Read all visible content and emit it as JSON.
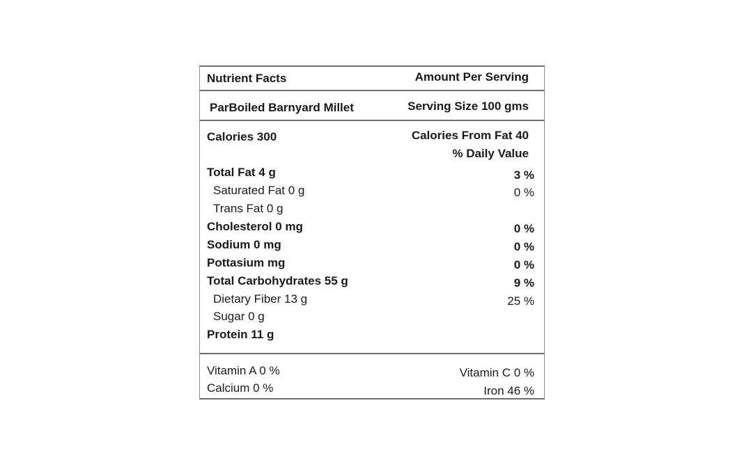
{
  "header": {
    "title": "Nutrient Facts",
    "amount_label": "Amount Per Serving"
  },
  "product": {
    "name": "ParBoiled Barnyard Millet",
    "serving_size": "Serving Size 100 gms"
  },
  "calories": {
    "label": "Calories 300",
    "from_fat": "Calories From Fat 40",
    "daily_value_header": "% Daily Value"
  },
  "nutrients": [
    {
      "label": "Total Fat 4 g",
      "percent": "3 %"
    },
    {
      "label": "Saturated Fat 0 g",
      "percent": "0 %"
    },
    {
      "label": "Trans Fat 0 g",
      "percent": ""
    },
    {
      "label": "Cholesterol 0 mg",
      "percent": "0 %"
    },
    {
      "label": "Sodium 0 mg",
      "percent": "0 %"
    },
    {
      "label": "Pottasium mg",
      "percent": "0 %"
    },
    {
      "label": "Total Carbohydrates 55 g",
      "percent": "9 %"
    },
    {
      "label": "Dietary Fiber 13 g",
      "percent": "25 %"
    },
    {
      "label": "Sugar 0 g",
      "percent": ""
    },
    {
      "label": "Protein 11 g",
      "percent": ""
    }
  ],
  "vitamins": {
    "vitamin_a": "Vitamin A 0 %",
    "vitamin_c": "Vitamin C 0 %",
    "calcium": "Calcium 0 %",
    "iron": "Iron 46 %"
  }
}
